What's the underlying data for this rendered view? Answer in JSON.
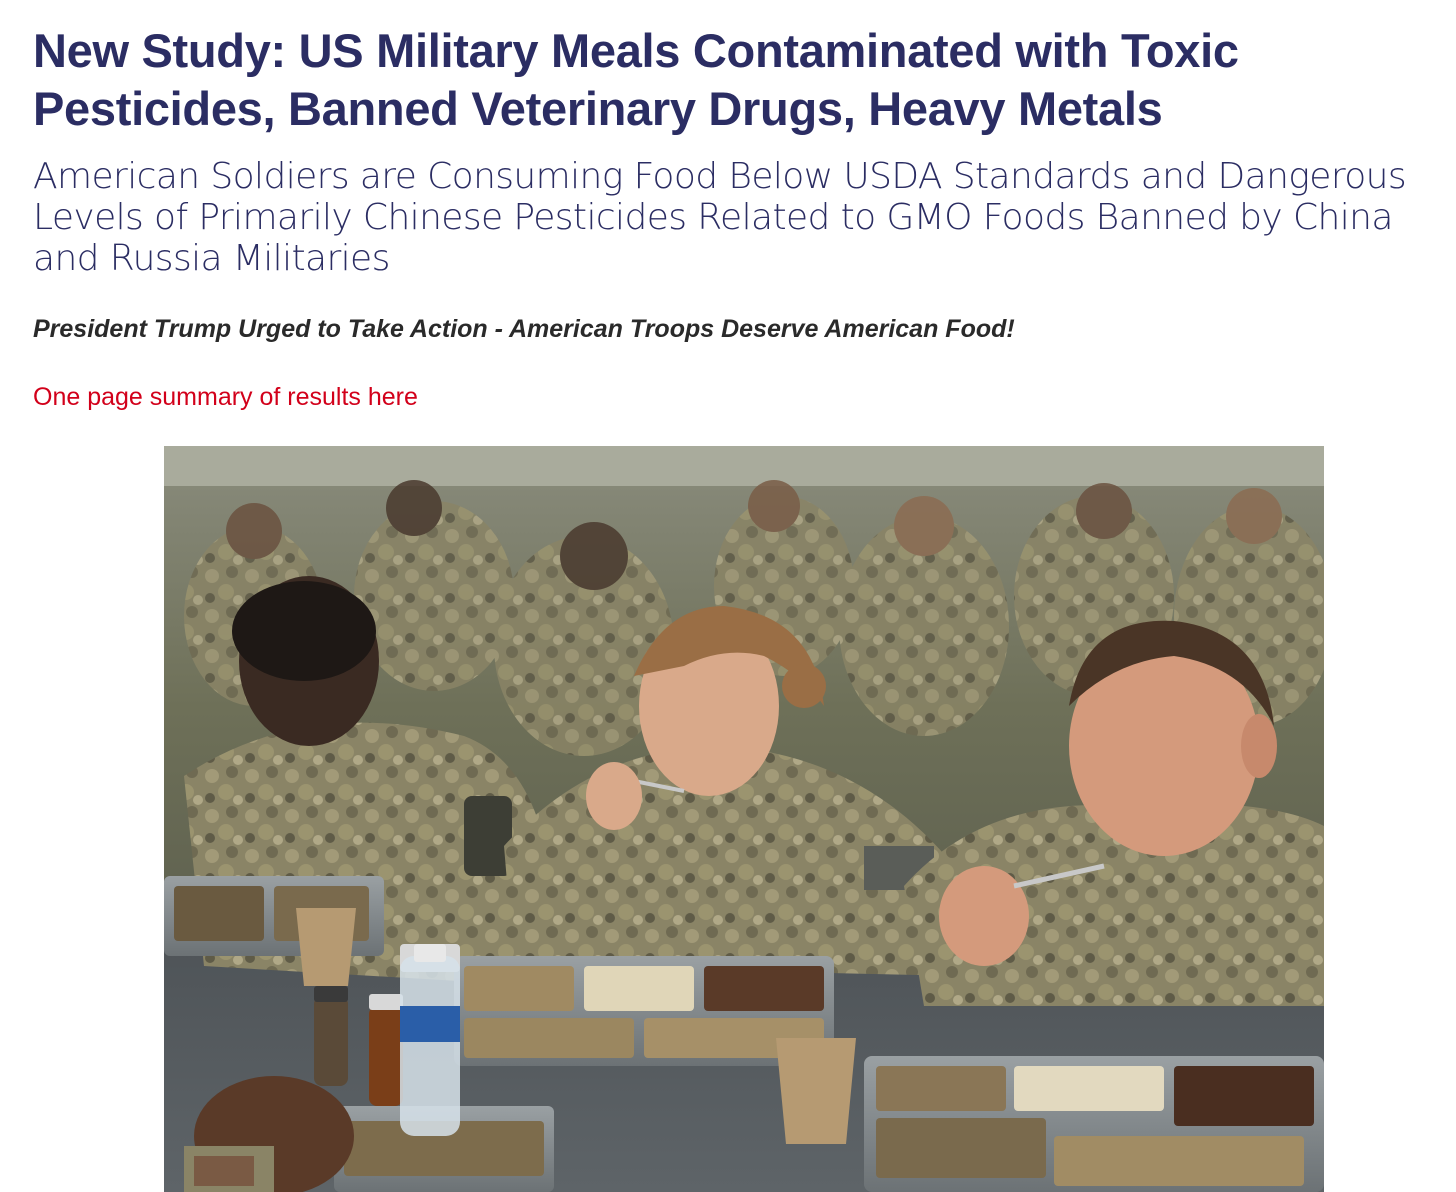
{
  "article": {
    "headline": "New Study: US Military Meals Contaminated with Toxic Pesticides, Banned Veterinary Drugs, Heavy Metals",
    "subheadline": "American Soldiers are Consuming Food Below USDA Standards and Dangerous Levels of Primarily Chinese Pesticides Related to GMO Foods Banned by China and Russia Militaries",
    "tagline": "President Trump Urged to Take Action - American Troops Deserve American Food!",
    "summary_link": "One page summary of results here"
  },
  "photo": {
    "subject": "soldiers-eating-in-mess-hall"
  },
  "colors": {
    "headline": "#2b2d63",
    "tagline": "#2a2a2a",
    "link": "#d2001a",
    "background": "#ffffff"
  }
}
